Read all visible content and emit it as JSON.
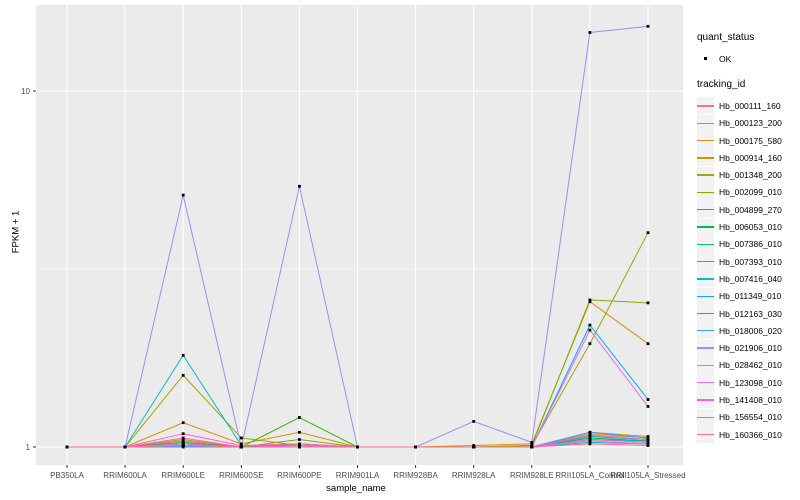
{
  "figure": {
    "colors": {
      "panel_bg": "#EBEBEB",
      "grid": "#FFFFFF",
      "point": "#000000",
      "tick_text": "#4D4D4D",
      "tick_mark": "#333333",
      "text": "#000000",
      "legend_key_bg": "#F2F2F2"
    }
  },
  "chart_data": {
    "type": "line",
    "title": "",
    "xlabel": "sample_name",
    "ylabel": "FPKM + 1",
    "y_scale": "log10",
    "y_ticks": [
      "1",
      "10"
    ],
    "y_minor_ticks": [
      3.162
    ],
    "ylim": [
      0.97,
      17.5
    ],
    "grid": true,
    "legend_position": "right",
    "categories": [
      "PB350LA",
      "RRIM600LA",
      "RRIM600LE",
      "RRIM600SE",
      "RRIM600PE",
      "RRIM901LA",
      "RRIM928BA",
      "RRIM928LA",
      "RRIM928LE",
      "RRII105LA_Control",
      "RRII105LA_Stressed"
    ],
    "series": [
      {
        "name": "Hb_000111_160",
        "color": "#F8766D",
        "values": [
          1,
          1,
          1.02,
          1,
          1,
          1,
          1,
          1,
          1,
          1.07,
          1.05
        ]
      },
      {
        "name": "Hb_000123_200",
        "color": "#EA8331",
        "values": [
          1,
          1,
          1.04,
          1,
          1.02,
          1,
          1,
          1,
          1,
          1.09,
          1.06
        ]
      },
      {
        "name": "Hb_000175_580",
        "color": "#D89000",
        "values": [
          1,
          1,
          1.17,
          1.02,
          1.1,
          1,
          1,
          1.01,
          1.02,
          2.56,
          1.95
        ]
      },
      {
        "name": "Hb_000914_160",
        "color": "#C09B00",
        "values": [
          1,
          1,
          1.05,
          1,
          1.01,
          1,
          1,
          1,
          1,
          1.1,
          1.07
        ]
      },
      {
        "name": "Hb_001348_200",
        "color": "#A3A500",
        "values": [
          1,
          1,
          1.59,
          1.06,
          1.01,
          1,
          1,
          1,
          1.01,
          1.95,
          4.0
        ]
      },
      {
        "name": "Hb_002099_010",
        "color": "#7CAE00",
        "values": [
          1,
          1,
          1.02,
          1,
          1.05,
          1,
          1,
          1,
          1.01,
          2.59,
          2.54
        ]
      },
      {
        "name": "Hb_004899_270",
        "color": "#39B600",
        "values": [
          1,
          1,
          1.01,
          1,
          1.21,
          1,
          1,
          1,
          1,
          1.08,
          1.05
        ]
      },
      {
        "name": "Hb_006053_010",
        "color": "#00BB4E",
        "values": [
          1,
          1,
          1.03,
          1,
          1.02,
          1,
          1,
          1,
          1,
          1.06,
          1.04
        ]
      },
      {
        "name": "Hb_007386_010",
        "color": "#00C083",
        "values": [
          1,
          1,
          1.02,
          1,
          1,
          1,
          1,
          1,
          1,
          1.05,
          1.04
        ]
      },
      {
        "name": "Hb_007393_010",
        "color": "#00C1A7",
        "values": [
          1,
          1,
          1.01,
          1,
          1,
          1,
          1,
          1,
          1,
          1.03,
          1.02
        ]
      },
      {
        "name": "Hb_007416_040",
        "color": "#00BFC4",
        "values": [
          1,
          1,
          1.81,
          1.01,
          1.01,
          1,
          1,
          1,
          1,
          1.07,
          1.05
        ]
      },
      {
        "name": "Hb_011349_010",
        "color": "#00B8E5",
        "values": [
          1,
          1,
          1.01,
          1,
          1,
          1,
          1,
          1,
          1,
          1.05,
          1.03
        ]
      },
      {
        "name": "Hb_012163_030",
        "color": "#00ACFC",
        "values": [
          1,
          1,
          1.01,
          1,
          1,
          1,
          1,
          1,
          1,
          2.2,
          1.36
        ]
      },
      {
        "name": "Hb_018006_020",
        "color": "#35A2FF",
        "values": [
          1,
          1,
          1,
          1,
          1,
          1,
          1,
          1,
          1,
          1.1,
          1.06
        ]
      },
      {
        "name": "Hb_021906_010",
        "color": "#9590FF",
        "values": [
          1,
          1,
          5.1,
          1,
          5.4,
          1,
          1,
          1.18,
          1.03,
          14.6,
          15.2
        ]
      },
      {
        "name": "Hb_028462_010",
        "color": "#C77CFF",
        "values": [
          1,
          1,
          1.01,
          1,
          1,
          1,
          1,
          1,
          1,
          1.04,
          1.02
        ]
      },
      {
        "name": "Hb_123098_010",
        "color": "#E76BF3",
        "values": [
          1,
          1,
          1.02,
          1,
          1,
          1,
          1,
          1,
          1,
          2.13,
          1.3
        ]
      },
      {
        "name": "Hb_141408_010",
        "color": "#FA62DB",
        "values": [
          1,
          1,
          1.06,
          1,
          1.01,
          1,
          1,
          1,
          1,
          1.08,
          1.05
        ]
      },
      {
        "name": "Hb_156554_010",
        "color": "#FF62BC",
        "values": [
          1,
          1,
          1.09,
          1.01,
          1.02,
          1,
          1,
          1,
          1,
          1.05,
          1.03
        ]
      },
      {
        "name": "Hb_160366_010",
        "color": "#FF6C91",
        "values": [
          1,
          1,
          1.01,
          1,
          1,
          1,
          1,
          1,
          1,
          1.02,
          1.01
        ]
      }
    ],
    "legend": {
      "quant_status_title": "quant_status",
      "ok_label": "OK",
      "tracking_id_title": "tracking_id"
    }
  }
}
